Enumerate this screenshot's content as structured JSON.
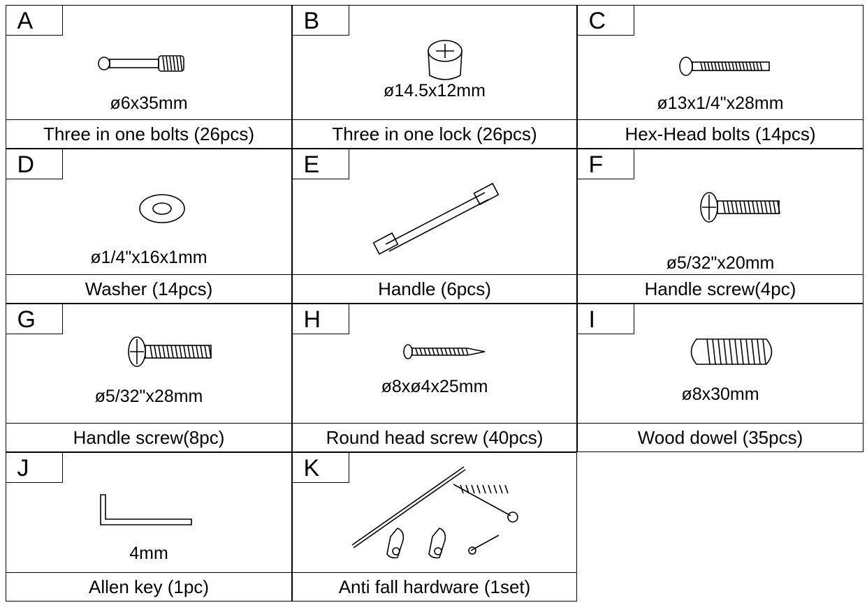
{
  "items": [
    {
      "letter": "A",
      "size": "ø6x35mm",
      "name": "Three in one bolts (26pcs)"
    },
    {
      "letter": "B",
      "size": "ø14.5x12mm",
      "name": "Three in one lock (26pcs)"
    },
    {
      "letter": "C",
      "size": "ø13x1/4\"x28mm",
      "name": "Hex-Head bolts (14pcs)"
    },
    {
      "letter": "D",
      "size": "ø1/4\"x16x1mm",
      "name": "Washer (14pcs)"
    },
    {
      "letter": "E",
      "name": "Handle (6pcs)"
    },
    {
      "letter": "F",
      "size": "ø5/32\"x20mm",
      "name": "Handle screw(4pc)"
    },
    {
      "letter": "G",
      "size": "ø5/32\"x28mm",
      "name": "Handle screw(8pc)"
    },
    {
      "letter": "H",
      "size": "ø8xø4x25mm",
      "name": "Round head screw (40pcs)"
    },
    {
      "letter": "I",
      "size": "ø8x30mm",
      "name": "Wood dowel (35pcs)"
    },
    {
      "letter": "J",
      "size": "4mm",
      "name": "Allen key (1pc)"
    },
    {
      "letter": "K",
      "name": "Anti fall hardware (1set)"
    }
  ]
}
